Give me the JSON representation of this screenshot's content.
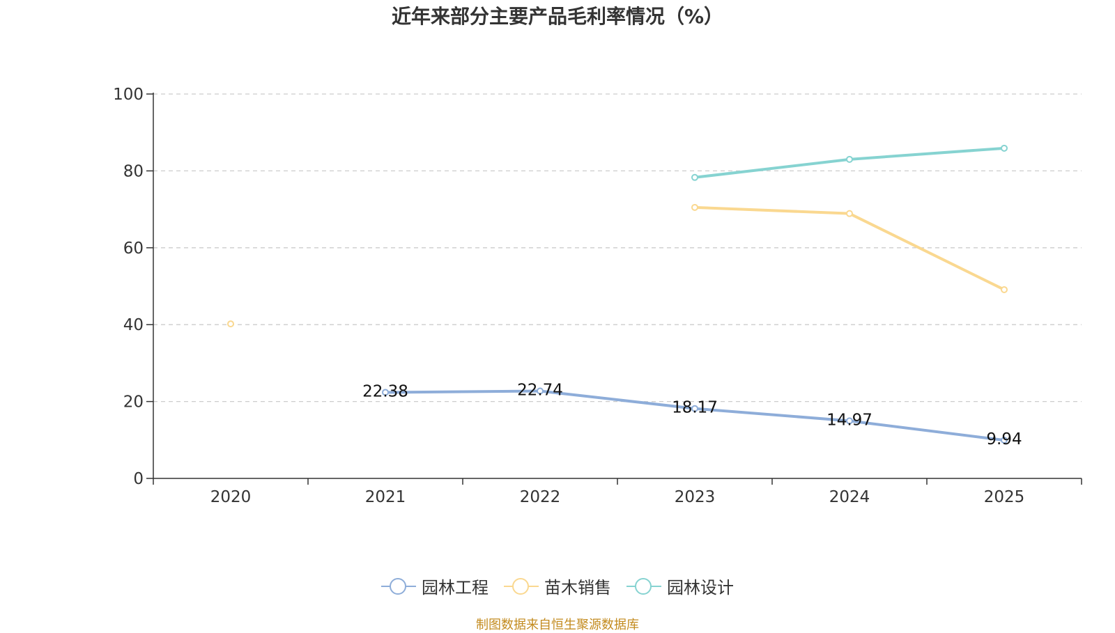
{
  "chart_data": {
    "type": "line",
    "title": "近年来部分主要产品毛利率情况（%）",
    "categories": [
      "2020",
      "2021",
      "2022",
      "2023",
      "2024",
      "2025"
    ],
    "ylim": [
      0,
      100
    ],
    "yticks": [
      0,
      20,
      40,
      60,
      80,
      100
    ],
    "grid": true,
    "legend_position": "bottom",
    "series": [
      {
        "name": "园林工程",
        "color": "#8eadd9",
        "values": [
          null,
          22.38,
          22.74,
          18.17,
          14.97,
          9.94
        ],
        "show_labels": true
      },
      {
        "name": "苗木销售",
        "color": "#fad890",
        "values": [
          40.2,
          null,
          null,
          70.5,
          68.9,
          49.1
        ],
        "show_labels": false
      },
      {
        "name": "园林设计",
        "color": "#86d3d1",
        "values": [
          null,
          null,
          null,
          78.3,
          83.0,
          85.9
        ],
        "show_labels": false
      }
    ]
  },
  "source_note": "制图数据来自恒生聚源数据库"
}
